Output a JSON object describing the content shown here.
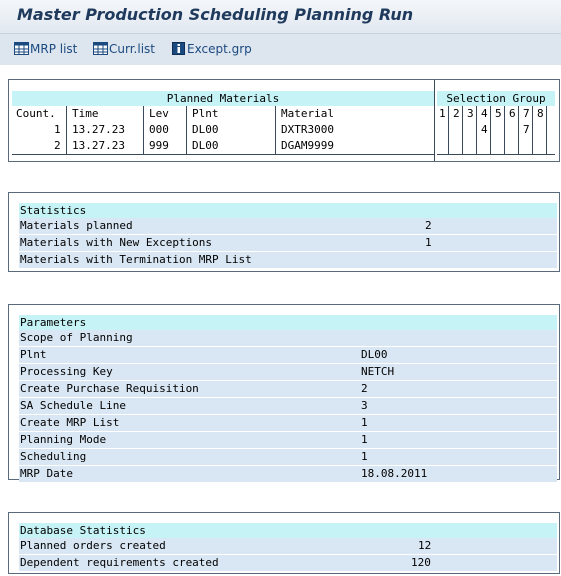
{
  "title": "Master Production Scheduling Planning Run",
  "toolbar": {
    "mrp_list": "MRP list",
    "curr_list": "Curr.list",
    "except_grp": "Except.grp",
    "mrp_list_icon": "table-icon",
    "curr_list_icon": "table-icon",
    "except_grp_icon": "info-icon"
  },
  "planned_materials": {
    "title": "Planned Materials",
    "selection_group_title": "Selection Group",
    "columns": [
      "Count.",
      "Time",
      "Lev",
      "Plnt",
      "Material"
    ],
    "group_columns": [
      "1",
      "2",
      "3",
      "4",
      "5",
      "6",
      "7",
      "8"
    ],
    "rows": [
      {
        "count": "1",
        "time": "13.27.23",
        "lev": "000",
        "plnt": "DL00",
        "material": "DXTR3000",
        "groups": [
          "",
          "",
          "",
          "4",
          "",
          "",
          "7",
          ""
        ]
      },
      {
        "count": "2",
        "time": "13.27.23",
        "lev": "999",
        "plnt": "DL00",
        "material": "DGAM9999",
        "groups": [
          "",
          "",
          "",
          "",
          "",
          "",
          "",
          ""
        ]
      }
    ]
  },
  "statistics": {
    "title": "Statistics",
    "rows": [
      {
        "label": "Materials planned",
        "value": "2"
      },
      {
        "label": "Materials with New Exceptions",
        "value": "1"
      },
      {
        "label": "Materials with Termination MRP List",
        "value": ""
      }
    ]
  },
  "parameters": {
    "title": "Parameters",
    "rows": [
      {
        "label": "Scope of Planning",
        "value": ""
      },
      {
        "label": "Plnt",
        "value": "DL00"
      },
      {
        "label": "Processing Key",
        "value": "NETCH"
      },
      {
        "label": "Create Purchase Requisition",
        "value": "2"
      },
      {
        "label": "SA Schedule Line",
        "value": "3"
      },
      {
        "label": "Create MRP List",
        "value": "1"
      },
      {
        "label": "Planning Mode",
        "value": "1"
      },
      {
        "label": "Scheduling",
        "value": "1"
      },
      {
        "label": "MRP Date",
        "value": "18.08.2011"
      }
    ]
  },
  "database_statistics": {
    "title": "Database Statistics",
    "rows": [
      {
        "label": "Planned orders created",
        "value": "12"
      },
      {
        "label": "Dependent requirements created",
        "value": "120"
      }
    ]
  }
}
